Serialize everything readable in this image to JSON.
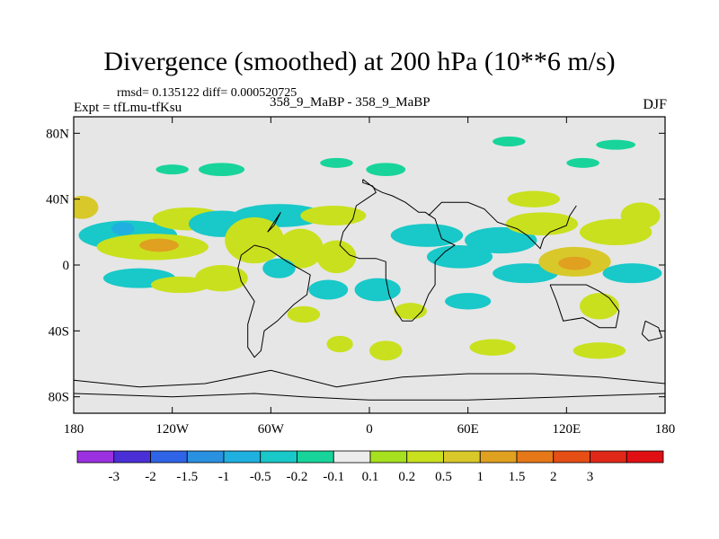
{
  "chart_data": {
    "type": "heatmap",
    "title": "Divergence (smoothed) at 200 hPa (10**6 m/s)",
    "stats_text": "rmsd= 0.135122 diff= 0.000520725",
    "experiment_text": "Expt = tfLmu-tfKsu",
    "case_text": "358_9_MaBP - 358_9_MaBP",
    "season": "DJF",
    "rmsd": 0.135122,
    "diff": 0.000520725,
    "xlim": [
      -180,
      180
    ],
    "ylim": [
      -90,
      90
    ],
    "x_ticks": [
      {
        "value": -180,
        "label": "180"
      },
      {
        "value": -120,
        "label": "120W"
      },
      {
        "value": -60,
        "label": "60W"
      },
      {
        "value": 0,
        "label": "0"
      },
      {
        "value": 60,
        "label": "60E"
      },
      {
        "value": 120,
        "label": "120E"
      },
      {
        "value": 180,
        "label": "180"
      }
    ],
    "y_ticks": [
      {
        "value": 80,
        "label": "80N"
      },
      {
        "value": 40,
        "label": "40N"
      },
      {
        "value": 0,
        "label": "0"
      },
      {
        "value": -40,
        "label": "40S"
      },
      {
        "value": -80,
        "label": "80S"
      }
    ],
    "colorbar": {
      "colors": [
        "#9b30e0",
        "#4b2fd6",
        "#2f64e6",
        "#2a90e0",
        "#1fb0e0",
        "#19c8c8",
        "#18d49a",
        "#ececec",
        "#a6e01e",
        "#c9e01e",
        "#d8c82a",
        "#e0a020",
        "#e67818",
        "#e54e14",
        "#e02818",
        "#e00f14"
      ],
      "labels": [
        "-3",
        "-2",
        "-1.5",
        "-1",
        "-0.5",
        "-0.2",
        "-0.1",
        "0.1",
        "0.2",
        "0.5",
        "1",
        "1.5",
        "2",
        "3"
      ]
    },
    "field": [
      {
        "lon": -175,
        "lat": 35,
        "w": 10,
        "h": 7,
        "v": 0.8
      },
      {
        "lon": -147,
        "lat": 18,
        "w": 30,
        "h": 9,
        "v": -0.4
      },
      {
        "lon": -150,
        "lat": 22,
        "w": 7,
        "h": 4,
        "v": -1.0
      },
      {
        "lon": -132,
        "lat": 11,
        "w": 34,
        "h": 8,
        "v": 0.4
      },
      {
        "lon": -128,
        "lat": 12,
        "w": 12,
        "h": 4,
        "v": 1.2
      },
      {
        "lon": -110,
        "lat": 28,
        "w": 22,
        "h": 7,
        "v": 0.3
      },
      {
        "lon": -90,
        "lat": 25,
        "w": 20,
        "h": 8,
        "v": -0.3
      },
      {
        "lon": -55,
        "lat": 30,
        "w": 28,
        "h": 7,
        "v": -0.35
      },
      {
        "lon": -22,
        "lat": 30,
        "w": 20,
        "h": 6,
        "v": 0.3
      },
      {
        "lon": -70,
        "lat": 15,
        "w": 18,
        "h": 14,
        "v": 0.35
      },
      {
        "lon": -42,
        "lat": 10,
        "w": 14,
        "h": 12,
        "v": 0.3
      },
      {
        "lon": -20,
        "lat": 5,
        "w": 12,
        "h": 10,
        "v": 0.4
      },
      {
        "lon": -140,
        "lat": -8,
        "w": 22,
        "h": 6,
        "v": -0.3
      },
      {
        "lon": -115,
        "lat": -12,
        "w": 18,
        "h": 5,
        "v": 0.3
      },
      {
        "lon": -90,
        "lat": -8,
        "w": 16,
        "h": 8,
        "v": 0.25
      },
      {
        "lon": -55,
        "lat": -2,
        "w": 10,
        "h": 6,
        "v": -0.3
      },
      {
        "lon": -25,
        "lat": -15,
        "w": 12,
        "h": 6,
        "v": -0.3
      },
      {
        "lon": 5,
        "lat": -15,
        "w": 14,
        "h": 7,
        "v": -0.3
      },
      {
        "lon": 35,
        "lat": 18,
        "w": 22,
        "h": 7,
        "v": -0.4
      },
      {
        "lon": 55,
        "lat": 5,
        "w": 20,
        "h": 7,
        "v": -0.35
      },
      {
        "lon": 80,
        "lat": 15,
        "w": 22,
        "h": 8,
        "v": -0.3
      },
      {
        "lon": 100,
        "lat": 40,
        "w": 16,
        "h": 5,
        "v": 0.35
      },
      {
        "lon": 105,
        "lat": 25,
        "w": 22,
        "h": 7,
        "v": 0.3
      },
      {
        "lon": 95,
        "lat": -5,
        "w": 20,
        "h": 6,
        "v": -0.35
      },
      {
        "lon": 125,
        "lat": 2,
        "w": 22,
        "h": 9,
        "v": 0.5
      },
      {
        "lon": 125,
        "lat": 1,
        "w": 10,
        "h": 4,
        "v": 1.2
      },
      {
        "lon": 150,
        "lat": 20,
        "w": 22,
        "h": 8,
        "v": 0.35
      },
      {
        "lon": 165,
        "lat": 30,
        "w": 12,
        "h": 8,
        "v": 0.3
      },
      {
        "lon": 160,
        "lat": -5,
        "w": 18,
        "h": 6,
        "v": -0.3
      },
      {
        "lon": 140,
        "lat": -25,
        "w": 12,
        "h": 8,
        "v": 0.3
      },
      {
        "lon": 60,
        "lat": -22,
        "w": 14,
        "h": 5,
        "v": -0.25
      },
      {
        "lon": 25,
        "lat": -28,
        "w": 10,
        "h": 5,
        "v": 0.3
      },
      {
        "lon": -40,
        "lat": -30,
        "w": 10,
        "h": 5,
        "v": 0.3
      },
      {
        "lon": 10,
        "lat": -52,
        "w": 10,
        "h": 6,
        "v": 0.3
      },
      {
        "lon": -18,
        "lat": -48,
        "w": 8,
        "h": 5,
        "v": 0.3
      },
      {
        "lon": 75,
        "lat": -50,
        "w": 14,
        "h": 5,
        "v": 0.25
      },
      {
        "lon": 140,
        "lat": -52,
        "w": 16,
        "h": 5,
        "v": 0.3
      },
      {
        "lon": -90,
        "lat": 58,
        "w": 14,
        "h": 4,
        "v": -0.2
      },
      {
        "lon": 10,
        "lat": 58,
        "w": 12,
        "h": 4,
        "v": -0.2
      },
      {
        "lon": -120,
        "lat": 58,
        "w": 10,
        "h": 3,
        "v": -0.2
      },
      {
        "lon": 85,
        "lat": 75,
        "w": 10,
        "h": 3,
        "v": -0.2
      },
      {
        "lon": 150,
        "lat": 73,
        "w": 12,
        "h": 3,
        "v": -0.2
      },
      {
        "lon": 130,
        "lat": 62,
        "w": 10,
        "h": 3,
        "v": -0.2
      },
      {
        "lon": -20,
        "lat": 62,
        "w": 10,
        "h": 3,
        "v": -0.2
      }
    ],
    "coastlines": [
      [
        [
          -4,
          52
        ],
        [
          -4,
          50
        ],
        [
          2,
          48
        ],
        [
          4,
          44
        ],
        [
          -2,
          40
        ],
        [
          -8,
          36
        ],
        [
          -10,
          28
        ],
        [
          -16,
          20
        ],
        [
          -18,
          12
        ],
        [
          -12,
          6
        ],
        [
          -6,
          4
        ],
        [
          4,
          4
        ],
        [
          10,
          2
        ],
        [
          10,
          -8
        ],
        [
          12,
          -18
        ],
        [
          16,
          -28
        ],
        [
          20,
          -34
        ],
        [
          26,
          -34
        ],
        [
          32,
          -28
        ],
        [
          36,
          -18
        ],
        [
          40,
          -12
        ],
        [
          40,
          2
        ],
        [
          46,
          8
        ],
        [
          52,
          12
        ],
        [
          44,
          16
        ],
        [
          40,
          28
        ],
        [
          34,
          32
        ],
        [
          30,
          32
        ],
        [
          22,
          38
        ],
        [
          14,
          42
        ],
        [
          8,
          44
        ],
        [
          4,
          46
        ],
        [
          -4,
          52
        ]
      ],
      [
        [
          -70,
          12
        ],
        [
          -62,
          10
        ],
        [
          -50,
          2
        ],
        [
          -36,
          -6
        ],
        [
          -38,
          -18
        ],
        [
          -46,
          -24
        ],
        [
          -56,
          -34
        ],
        [
          -64,
          -40
        ],
        [
          -66,
          -52
        ],
        [
          -70,
          -56
        ],
        [
          -74,
          -50
        ],
        [
          -74,
          -36
        ],
        [
          -70,
          -22
        ],
        [
          -78,
          -10
        ],
        [
          -80,
          -2
        ],
        [
          -78,
          6
        ],
        [
          -70,
          12
        ]
      ],
      [
        [
          -62,
          20
        ],
        [
          -54,
          32
        ],
        [
          -58,
          24
        ],
        [
          -62,
          20
        ]
      ],
      [
        [
          36,
          30
        ],
        [
          44,
          38
        ],
        [
          60,
          38
        ],
        [
          70,
          34
        ],
        [
          78,
          26
        ],
        [
          90,
          22
        ],
        [
          96,
          18
        ],
        [
          104,
          10
        ],
        [
          106,
          16
        ],
        [
          110,
          20
        ],
        [
          120,
          24
        ],
        [
          122,
          30
        ],
        [
          126,
          36
        ]
      ],
      [
        [
          110,
          -12
        ],
        [
          124,
          -12
        ],
        [
          132,
          -12
        ],
        [
          140,
          -16
        ],
        [
          146,
          -20
        ],
        [
          152,
          -28
        ],
        [
          150,
          -38
        ],
        [
          140,
          -38
        ],
        [
          130,
          -32
        ],
        [
          118,
          -34
        ],
        [
          114,
          -22
        ],
        [
          110,
          -12
        ]
      ],
      [
        [
          -180,
          -70
        ],
        [
          -140,
          -74
        ],
        [
          -100,
          -72
        ],
        [
          -60,
          -64
        ],
        [
          -20,
          -74
        ],
        [
          20,
          -68
        ],
        [
          60,
          -66
        ],
        [
          100,
          -66
        ],
        [
          140,
          -68
        ],
        [
          180,
          -72
        ]
      ],
      [
        [
          -180,
          -78
        ],
        [
          -120,
          -80
        ],
        [
          -70,
          -78
        ],
        [
          -40,
          -80
        ],
        [
          0,
          -82
        ],
        [
          60,
          -82
        ],
        [
          120,
          -80
        ],
        [
          180,
          -78
        ]
      ],
      [
        [
          168,
          -34
        ],
        [
          176,
          -38
        ],
        [
          178,
          -44
        ],
        [
          170,
          -46
        ],
        [
          166,
          -42
        ],
        [
          168,
          -34
        ]
      ]
    ]
  }
}
